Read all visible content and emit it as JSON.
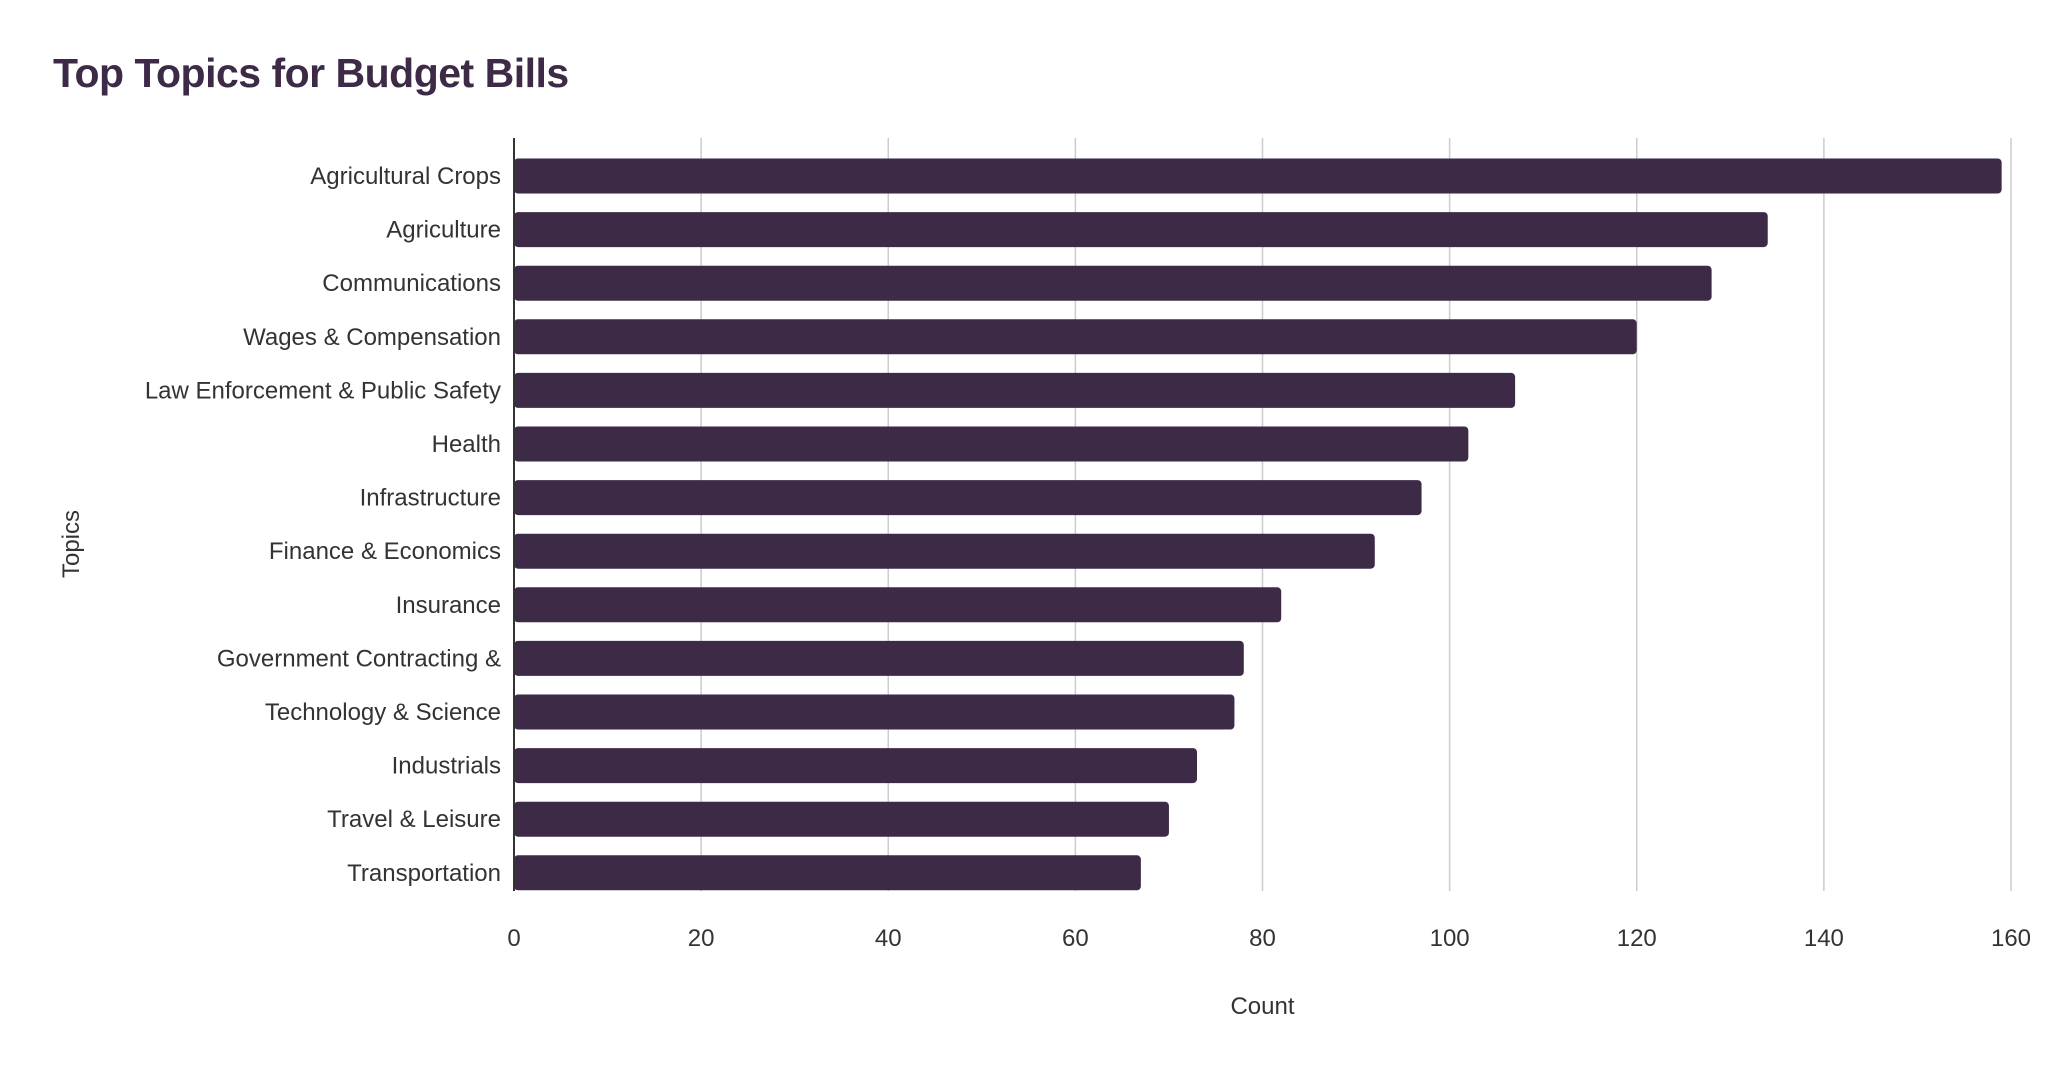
{
  "chart_data": {
    "type": "bar",
    "orientation": "horizontal",
    "title": "Top Topics for Budget Bills",
    "xlabel": "Count",
    "ylabel": "Topics",
    "categories": [
      "Agricultural Crops",
      "Agriculture",
      "Communications",
      "Wages & Compensation",
      "Law Enforcement & Public Safety",
      "Health",
      "Infrastructure",
      "Finance & Economics",
      "Insurance",
      "Government Contracting &",
      "Technology & Science",
      "Industrials",
      "Travel & Leisure",
      "Transportation"
    ],
    "values": [
      159,
      134,
      128,
      120,
      107,
      102,
      97,
      92,
      82,
      78,
      77,
      73,
      70,
      67
    ],
    "xlim": [
      0,
      160
    ],
    "xticks": [
      "0",
      "20",
      "40",
      "60",
      "80",
      "100",
      "120",
      "140",
      "160"
    ],
    "grid": "vertical",
    "legend": "none",
    "colors": {
      "bar": "#3d2a47",
      "title": "#3d2a47",
      "text": "#333333",
      "grid": "#cccccc",
      "axis": "#333333"
    }
  }
}
